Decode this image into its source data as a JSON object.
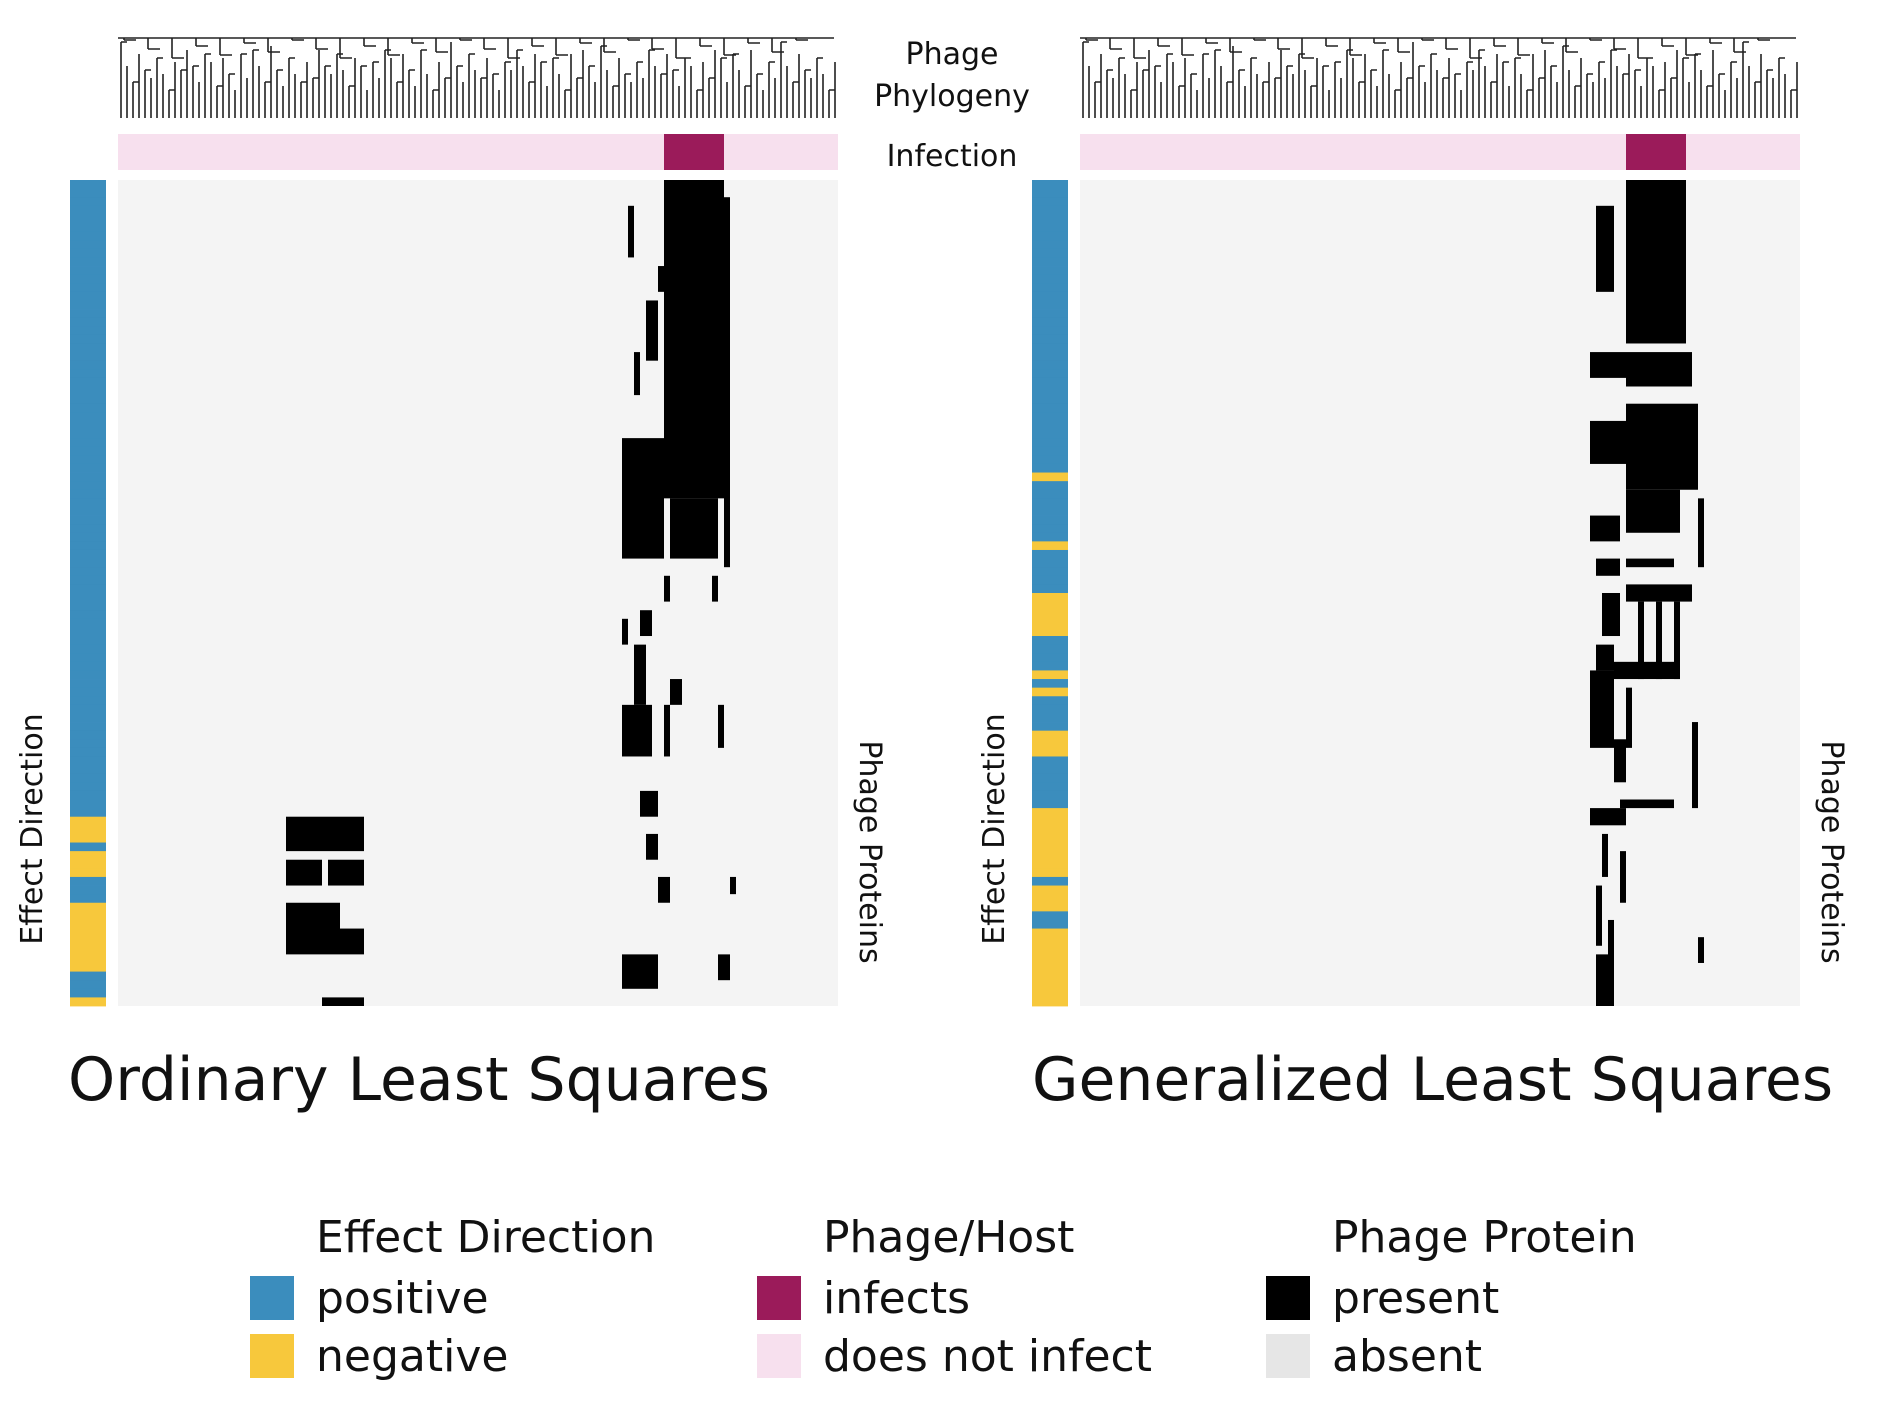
{
  "chart_data": [
    {
      "type": "heatmap",
      "title": "Ordinary Least Squares",
      "top_labels": [
        "Phage",
        "Phylogeny"
      ],
      "infection_label": "Infection",
      "ylabel": "Effect Direction",
      "right_label": "Phage Proteins",
      "n_phages": 120,
      "n_proteins": 96,
      "infecting_phages": [
        91,
        100
      ],
      "effect_direction": [
        "positive",
        "positive",
        "positive",
        "positive",
        "positive",
        "positive",
        "positive",
        "positive",
        "positive",
        "positive",
        "positive",
        "positive",
        "positive",
        "positive",
        "positive",
        "positive",
        "positive",
        "positive",
        "positive",
        "positive",
        "positive",
        "positive",
        "positive",
        "positive",
        "positive",
        "positive",
        "positive",
        "positive",
        "positive",
        "positive",
        "positive",
        "positive",
        "positive",
        "positive",
        "positive",
        "positive",
        "positive",
        "positive",
        "positive",
        "positive",
        "positive",
        "positive",
        "positive",
        "positive",
        "positive",
        "positive",
        "positive",
        "positive",
        "positive",
        "positive",
        "positive",
        "positive",
        "positive",
        "positive",
        "positive",
        "positive",
        "positive",
        "positive",
        "positive",
        "positive",
        "positive",
        "positive",
        "positive",
        "positive",
        "positive",
        "positive",
        "positive",
        "positive",
        "positive",
        "positive",
        "positive",
        "positive",
        "positive",
        "positive",
        "negative",
        "negative",
        "negative",
        "positive",
        "negative",
        "negative",
        "negative",
        "positive",
        "positive",
        "positive",
        "negative",
        "negative",
        "negative",
        "negative",
        "negative",
        "negative",
        "negative",
        "negative",
        "positive",
        "positive",
        "positive",
        "negative"
      ],
      "present_cells": [
        {
          "rows": [
            0,
            36
          ],
          "cols": [
            91,
            100
          ]
        },
        {
          "rows": [
            37,
            43
          ],
          "cols": [
            92,
            99
          ]
        },
        {
          "rows": [
            2,
            44
          ],
          "cols": [
            101,
            101
          ]
        },
        {
          "rows": [
            3,
            8
          ],
          "cols": [
            85,
            85
          ]
        },
        {
          "rows": [
            10,
            12
          ],
          "cols": [
            90,
            90
          ]
        },
        {
          "rows": [
            14,
            20
          ],
          "cols": [
            88,
            89
          ]
        },
        {
          "rows": [
            20,
            24
          ],
          "cols": [
            86,
            86
          ]
        },
        {
          "rows": [
            30,
            43
          ],
          "cols": [
            84,
            90
          ]
        },
        {
          "rows": [
            46,
            48
          ],
          "cols": [
            91,
            91
          ]
        },
        {
          "rows": [
            46,
            48
          ],
          "cols": [
            99,
            99
          ]
        },
        {
          "rows": [
            50,
            52
          ],
          "cols": [
            87,
            88
          ]
        },
        {
          "rows": [
            51,
            53
          ],
          "cols": [
            84,
            84
          ]
        },
        {
          "rows": [
            54,
            60
          ],
          "cols": [
            86,
            87
          ]
        },
        {
          "rows": [
            58,
            60
          ],
          "cols": [
            92,
            93
          ]
        },
        {
          "rows": [
            61,
            66
          ],
          "cols": [
            84,
            88
          ]
        },
        {
          "rows": [
            61,
            66
          ],
          "cols": [
            91,
            91
          ]
        },
        {
          "rows": [
            61,
            65
          ],
          "cols": [
            100,
            100
          ]
        },
        {
          "rows": [
            71,
            73
          ],
          "cols": [
            87,
            89
          ]
        },
        {
          "rows": [
            76,
            78
          ],
          "cols": [
            88,
            89
          ]
        },
        {
          "rows": [
            81,
            83
          ],
          "cols": [
            90,
            91
          ]
        },
        {
          "rows": [
            81,
            82
          ],
          "cols": [
            102,
            102
          ]
        },
        {
          "rows": [
            90,
            93
          ],
          "cols": [
            84,
            89
          ]
        },
        {
          "rows": [
            90,
            92
          ],
          "cols": [
            100,
            101
          ]
        },
        {
          "rows": [
            74,
            77
          ],
          "cols": [
            28,
            40
          ]
        },
        {
          "rows": [
            79,
            81
          ],
          "cols": [
            28,
            33
          ]
        },
        {
          "rows": [
            79,
            81
          ],
          "cols": [
            35,
            40
          ]
        },
        {
          "rows": [
            84,
            89
          ],
          "cols": [
            28,
            36
          ]
        },
        {
          "rows": [
            87,
            89
          ],
          "cols": [
            37,
            40
          ]
        },
        {
          "rows": [
            95,
            95
          ],
          "cols": [
            34,
            40
          ]
        }
      ]
    },
    {
      "type": "heatmap",
      "title": "Generalized Least Squares",
      "top_labels": [
        "Phage",
        "Phylogeny"
      ],
      "infection_label": "Infection",
      "ylabel": "Effect Direction",
      "right_label": "Phage Proteins",
      "n_phages": 120,
      "n_proteins": 96,
      "infecting_phages": [
        91,
        100
      ],
      "effect_direction": [
        "positive",
        "positive",
        "positive",
        "positive",
        "positive",
        "positive",
        "positive",
        "positive",
        "positive",
        "positive",
        "positive",
        "positive",
        "positive",
        "positive",
        "positive",
        "positive",
        "positive",
        "positive",
        "positive",
        "positive",
        "positive",
        "positive",
        "positive",
        "positive",
        "positive",
        "positive",
        "positive",
        "positive",
        "positive",
        "positive",
        "positive",
        "positive",
        "positive",
        "positive",
        "negative",
        "positive",
        "positive",
        "positive",
        "positive",
        "positive",
        "positive",
        "positive",
        "negative",
        "positive",
        "positive",
        "positive",
        "positive",
        "positive",
        "negative",
        "negative",
        "negative",
        "negative",
        "negative",
        "positive",
        "positive",
        "positive",
        "positive",
        "negative",
        "positive",
        "negative",
        "positive",
        "positive",
        "positive",
        "positive",
        "negative",
        "negative",
        "negative",
        "positive",
        "positive",
        "positive",
        "positive",
        "positive",
        "positive",
        "negative",
        "negative",
        "negative",
        "negative",
        "negative",
        "negative",
        "negative",
        "negative",
        "positive",
        "negative",
        "negative",
        "negative",
        "positive",
        "positive",
        "negative",
        "negative",
        "negative",
        "negative",
        "negative",
        "negative",
        "negative",
        "negative",
        "negative"
      ],
      "present_cells": [
        {
          "rows": [
            0,
            18
          ],
          "cols": [
            91,
            100
          ]
        },
        {
          "rows": [
            20,
            23
          ],
          "cols": [
            91,
            101
          ]
        },
        {
          "rows": [
            26,
            35
          ],
          "cols": [
            91,
            102
          ]
        },
        {
          "rows": [
            36,
            40
          ],
          "cols": [
            91,
            99
          ]
        },
        {
          "rows": [
            37,
            44
          ],
          "cols": [
            103,
            103
          ]
        },
        {
          "rows": [
            39,
            41
          ],
          "cols": [
            85,
            89
          ]
        },
        {
          "rows": [
            44,
            45
          ],
          "cols": [
            86,
            89
          ]
        },
        {
          "rows": [
            44,
            44
          ],
          "cols": [
            91,
            98
          ]
        },
        {
          "rows": [
            28,
            32
          ],
          "cols": [
            85,
            90
          ]
        },
        {
          "rows": [
            3,
            12
          ],
          "cols": [
            86,
            88
          ]
        },
        {
          "rows": [
            20,
            22
          ],
          "cols": [
            85,
            90
          ]
        },
        {
          "rows": [
            47,
            48
          ],
          "cols": [
            91,
            101
          ]
        },
        {
          "rows": [
            49,
            57
          ],
          "cols": [
            93,
            93
          ]
        },
        {
          "rows": [
            49,
            57
          ],
          "cols": [
            96,
            96
          ]
        },
        {
          "rows": [
            49,
            57
          ],
          "cols": [
            99,
            99
          ]
        },
        {
          "rows": [
            48,
            52
          ],
          "cols": [
            87,
            89
          ]
        },
        {
          "rows": [
            54,
            56
          ],
          "cols": [
            86,
            88
          ]
        },
        {
          "rows": [
            56,
            57
          ],
          "cols": [
            89,
            99
          ]
        },
        {
          "rows": [
            57,
            65
          ],
          "cols": [
            85,
            88
          ]
        },
        {
          "rows": [
            59,
            65
          ],
          "cols": [
            91,
            91
          ]
        },
        {
          "rows": [
            65,
            69
          ],
          "cols": [
            89,
            90
          ]
        },
        {
          "rows": [
            72,
            72
          ],
          "cols": [
            90,
            98
          ]
        },
        {
          "rows": [
            73,
            74
          ],
          "cols": [
            85,
            90
          ]
        },
        {
          "rows": [
            76,
            80
          ],
          "cols": [
            87,
            87
          ]
        },
        {
          "rows": [
            78,
            83
          ],
          "cols": [
            90,
            90
          ]
        },
        {
          "rows": [
            82,
            88
          ],
          "cols": [
            86,
            86
          ]
        },
        {
          "rows": [
            86,
            91
          ],
          "cols": [
            88,
            88
          ]
        },
        {
          "rows": [
            90,
            95
          ],
          "cols": [
            86,
            88
          ]
        },
        {
          "rows": [
            63,
            72
          ],
          "cols": [
            102,
            102
          ]
        },
        {
          "rows": [
            88,
            90
          ],
          "cols": [
            103,
            103
          ]
        }
      ]
    }
  ],
  "legend": {
    "effect": {
      "title": "Effect Direction",
      "items": [
        {
          "label": "positive",
          "color": "#3b8dbd"
        },
        {
          "label": "negative",
          "color": "#f7c83c"
        }
      ]
    },
    "host": {
      "title": "Phage/Host",
      "items": [
        {
          "label": "infects",
          "color": "#9b1b5a"
        },
        {
          "label": "does not infect",
          "color": "#f7e0ee"
        }
      ]
    },
    "protein": {
      "title": "Phage Protein",
      "items": [
        {
          "label": "present",
          "color": "#000000"
        },
        {
          "label": "absent",
          "color": "#e6e6e6"
        }
      ]
    }
  },
  "colors": {
    "absent_cell": "#f4f4f4",
    "tree": "#222222"
  }
}
